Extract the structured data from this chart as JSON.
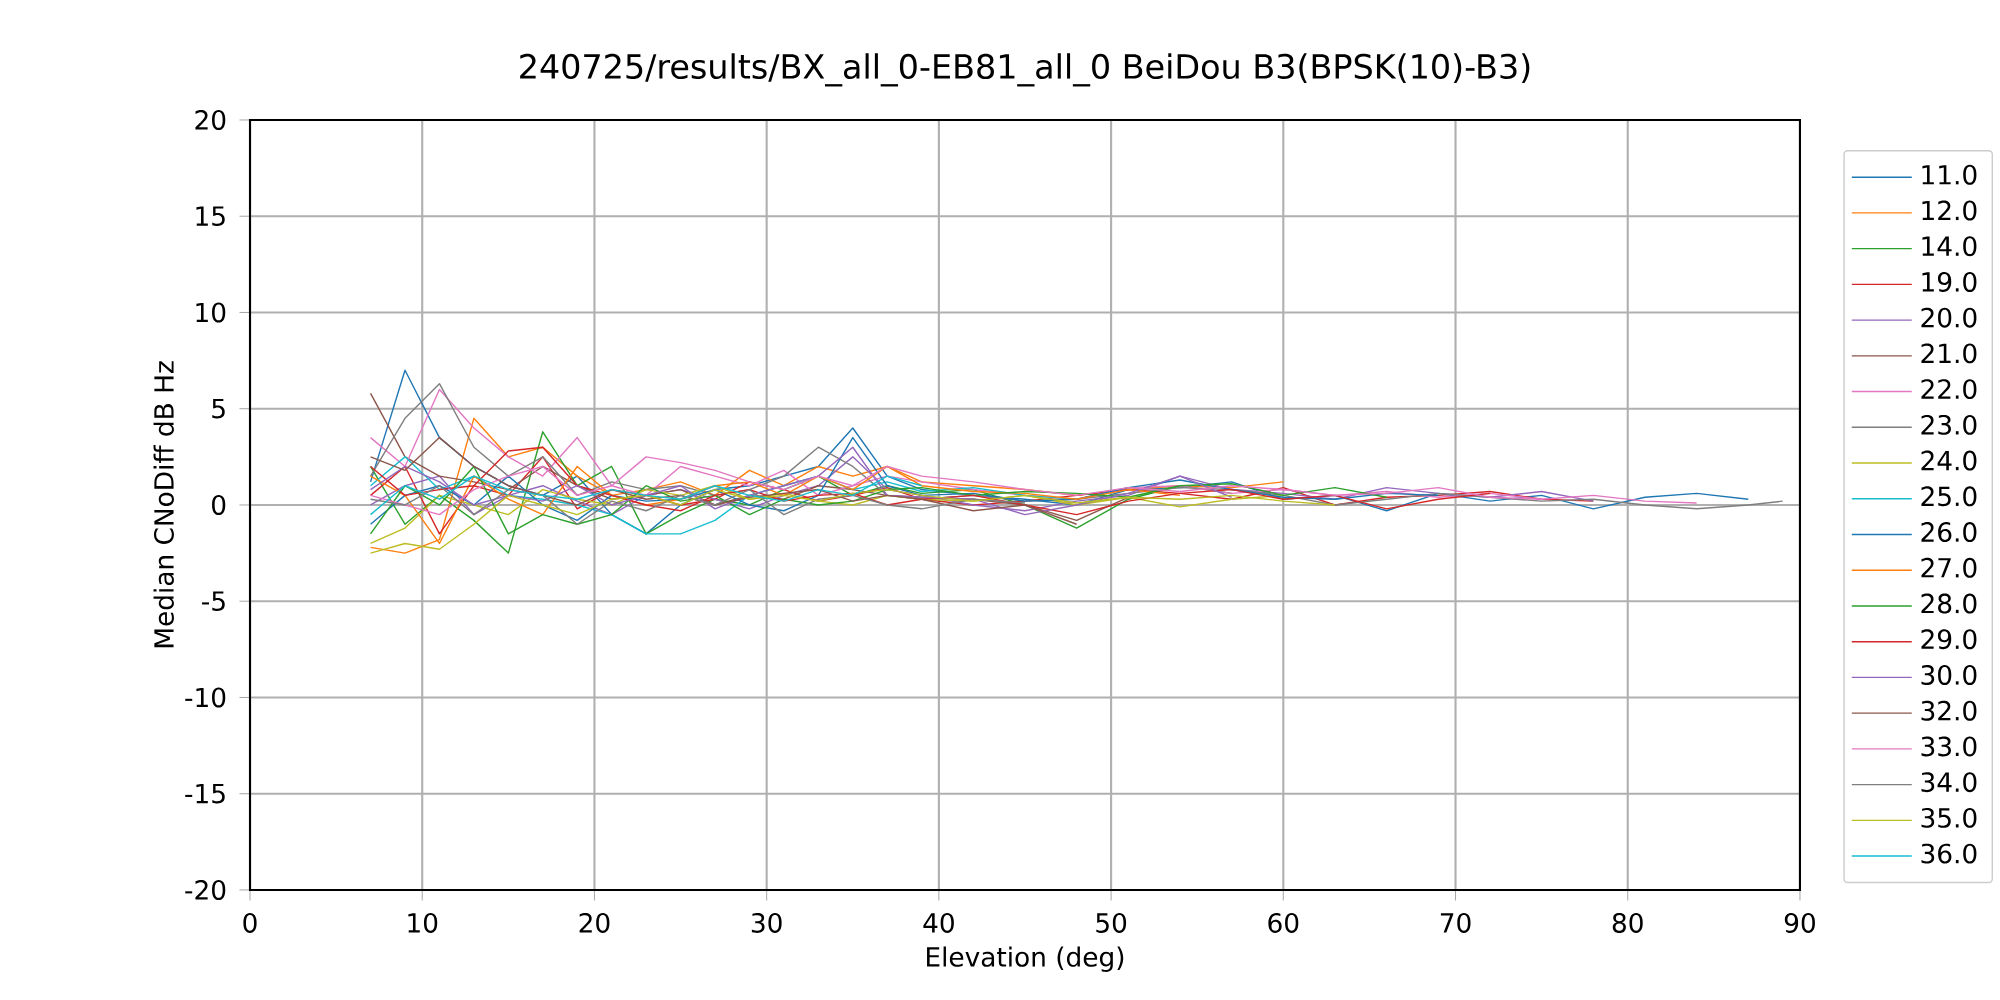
{
  "chart_data": {
    "type": "line",
    "title": "240725/results/BX_all_0-EB81_all_0 BeiDou B3(BPSK(10)-B3)",
    "xlabel": "Elevation (deg)",
    "ylabel": "Median CNoDiff dB Hz",
    "xlim": [
      0,
      90
    ],
    "ylim": [
      -20,
      20
    ],
    "xticks": [
      0,
      10,
      20,
      30,
      40,
      50,
      60,
      70,
      80,
      90
    ],
    "yticks": [
      -20,
      -15,
      -10,
      -5,
      0,
      5,
      10,
      15,
      20
    ],
    "grid": true,
    "legend": "right",
    "line_style": "solid",
    "series": [
      {
        "name": "11.0",
        "color": "#1f77b4",
        "x": [
          7,
          9,
          11,
          13,
          15,
          17,
          19,
          21,
          23,
          25,
          27,
          29,
          31,
          33,
          35,
          37,
          39,
          42,
          45,
          48,
          51,
          54,
          57,
          60,
          63,
          66,
          69,
          72,
          75,
          78,
          81,
          84,
          87
        ],
        "values": [
          1.2,
          7.0,
          3.5,
          2.0,
          1.0,
          0.5,
          1.5,
          -0.5,
          -1.5,
          0.0,
          0.8,
          1.0,
          1.5,
          2.0,
          4.0,
          1.5,
          0.8,
          0.5,
          0.3,
          0.0,
          0.8,
          0.9,
          1.2,
          0.3,
          0.5,
          -0.3,
          0.6,
          0.2,
          0.5,
          -0.2,
          0.4,
          0.6,
          0.3
        ]
      },
      {
        "name": "12.0",
        "color": "#ff7f0e",
        "x": [
          7,
          9,
          11,
          13,
          15,
          17,
          19,
          21,
          23,
          25,
          27,
          29,
          31,
          33,
          35,
          37,
          39,
          42,
          45,
          48,
          51,
          54,
          57,
          60
        ],
        "values": [
          -2.2,
          -2.5,
          -1.8,
          4.5,
          2.5,
          3.0,
          1.5,
          0.5,
          0.8,
          1.2,
          0.5,
          1.8,
          1.0,
          2.0,
          1.5,
          2.0,
          1.2,
          1.0,
          0.8,
          0.5,
          0.8,
          1.0,
          0.9,
          1.2
        ]
      },
      {
        "name": "14.0",
        "color": "#2ca02c",
        "x": [
          7,
          9,
          11,
          13,
          15,
          17,
          19,
          21,
          23,
          25,
          27,
          29,
          31,
          33,
          35,
          37,
          39,
          42,
          45,
          48,
          51,
          54,
          57
        ],
        "values": [
          2.0,
          -1.0,
          0.5,
          -0.8,
          -2.5,
          3.8,
          1.0,
          2.0,
          -1.5,
          -0.5,
          0.3,
          0.0,
          0.8,
          1.5,
          0.5,
          1.0,
          0.6,
          0.8,
          0.0,
          -1.2,
          0.3,
          1.0,
          0.6
        ]
      },
      {
        "name": "19.0",
        "color": "#d62728",
        "x": [
          7,
          9,
          11,
          13,
          15,
          17,
          19,
          21,
          23,
          25,
          27,
          29,
          31,
          33,
          35,
          37,
          39,
          42,
          45,
          48,
          51,
          54,
          57,
          60,
          63,
          66,
          69,
          72,
          75,
          78
        ],
        "values": [
          0.5,
          2.0,
          -1.5,
          1.0,
          0.5,
          2.5,
          -0.2,
          0.8,
          0.5,
          0.0,
          0.3,
          1.2,
          0.8,
          0.2,
          0.5,
          0.9,
          0.3,
          0.0,
          0.2,
          0.5,
          0.8,
          0.6,
          0.3,
          0.9,
          0.0,
          0.4,
          0.5,
          0.7,
          0.3,
          0.2
        ]
      },
      {
        "name": "20.0",
        "color": "#9467bd",
        "x": [
          7,
          9,
          11,
          13,
          15,
          17,
          19,
          21,
          23,
          25,
          27,
          29,
          31,
          33,
          35,
          37,
          39,
          42,
          45,
          48,
          51,
          54,
          57,
          60,
          63,
          66,
          69,
          72,
          75,
          78
        ],
        "values": [
          0.0,
          1.0,
          1.5,
          -0.5,
          0.5,
          1.0,
          0.2,
          -0.5,
          0.5,
          0.8,
          0.3,
          -0.2,
          0.5,
          1.0,
          2.5,
          0.8,
          0.5,
          0.0,
          -0.3,
          0.2,
          0.5,
          1.5,
          0.8,
          0.6,
          0.3,
          0.9,
          0.6,
          0.4,
          0.7,
          0.2
        ]
      },
      {
        "name": "21.0",
        "color": "#8c564b",
        "x": [
          7,
          9,
          11,
          13,
          15,
          17,
          19,
          21,
          23,
          25,
          27,
          29,
          31,
          33,
          35,
          37,
          39,
          42,
          45,
          48,
          51
        ],
        "values": [
          5.8,
          2.5,
          1.5,
          1.2,
          0.8,
          2.0,
          1.0,
          0.3,
          0.5,
          0.8,
          0.0,
          0.5,
          0.3,
          1.0,
          0.8,
          0.5,
          0.4,
          0.3,
          0.0,
          -0.8,
          0.4
        ]
      },
      {
        "name": "22.0",
        "color": "#e377c2",
        "x": [
          7,
          9,
          11,
          13,
          15,
          17,
          19,
          21,
          23,
          25,
          27,
          29,
          31,
          33,
          35,
          37,
          39,
          42,
          45,
          48,
          51,
          54,
          57,
          60,
          63,
          66,
          69,
          72,
          75,
          78,
          81,
          84
        ],
        "values": [
          3.5,
          2.0,
          6.0,
          4.0,
          2.5,
          1.5,
          3.5,
          1.0,
          0.5,
          2.0,
          1.5,
          1.0,
          1.8,
          0.5,
          1.0,
          1.5,
          1.2,
          0.8,
          0.5,
          0.3,
          0.9,
          1.0,
          0.6,
          0.8,
          0.5,
          0.7,
          0.4,
          0.6,
          0.3,
          0.5,
          0.2,
          0.1
        ]
      },
      {
        "name": "23.0",
        "color": "#7f7f7f",
        "x": [
          7,
          9,
          11,
          13,
          15,
          17,
          19,
          21,
          23,
          25,
          27,
          29,
          31,
          33,
          35,
          37,
          39,
          42,
          45,
          48,
          51,
          54,
          57,
          60,
          63,
          66,
          69,
          72,
          75,
          78,
          81,
          84,
          87,
          89
        ],
        "values": [
          1.5,
          4.5,
          6.3,
          3.0,
          1.5,
          2.5,
          0.5,
          1.2,
          0.8,
          1.0,
          0.5,
          0.8,
          1.5,
          3.0,
          2.0,
          0.5,
          0.3,
          0.5,
          0.2,
          0.3,
          0.6,
          0.9,
          0.8,
          0.5,
          0.0,
          0.3,
          0.6,
          0.4,
          0.2,
          0.3,
          0.0,
          -0.2,
          0.0,
          0.2
        ]
      },
      {
        "name": "24.0",
        "color": "#bcbd22",
        "x": [
          7,
          9,
          11,
          13,
          15,
          17,
          19,
          21,
          23,
          25,
          27,
          29,
          31,
          33,
          35,
          37,
          39,
          42,
          45,
          48,
          51,
          54,
          57,
          60
        ],
        "values": [
          -2.0,
          -1.2,
          0.5,
          0.0,
          -0.5,
          0.8,
          0.3,
          0.0,
          0.8,
          0.5,
          1.0,
          0.3,
          0.6,
          0.2,
          0.0,
          0.5,
          0.3,
          0.2,
          0.5,
          0.0,
          0.4,
          -0.1,
          0.3,
          0.5
        ]
      },
      {
        "name": "25.0",
        "color": "#17becf",
        "x": [
          7,
          9,
          11,
          13,
          15,
          17,
          19,
          21,
          23,
          25,
          27,
          29,
          31,
          33,
          35,
          37,
          39,
          42,
          45,
          48
        ],
        "values": [
          1.0,
          2.5,
          0.8,
          1.5,
          0.5,
          0.3,
          0.0,
          -0.5,
          -1.5,
          -1.5,
          -0.8,
          0.5,
          1.0,
          1.5,
          0.8,
          1.2,
          0.7,
          0.9,
          0.5,
          0.3
        ]
      },
      {
        "name": "26.0",
        "color": "#1f77b4",
        "x": [
          7,
          9,
          11,
          13,
          15,
          17,
          19,
          21,
          23,
          25,
          27,
          29,
          31,
          33,
          35,
          37,
          39,
          42,
          45,
          48,
          51,
          54,
          57,
          60,
          63,
          66,
          69
        ],
        "values": [
          -1.0,
          0.5,
          1.0,
          0.0,
          1.5,
          0.0,
          -0.8,
          0.5,
          0.2,
          0.3,
          0.8,
          0.0,
          -0.3,
          0.5,
          3.5,
          1.0,
          0.5,
          0.6,
          0.2,
          0.3,
          0.9,
          1.3,
          0.8,
          0.4,
          0.3,
          0.6,
          0.5
        ]
      },
      {
        "name": "27.0",
        "color": "#ff7f0e",
        "x": [
          7,
          9,
          11,
          13,
          15,
          17,
          19,
          21,
          23,
          25,
          27,
          29,
          31,
          33,
          35,
          37,
          39,
          42,
          45,
          48,
          51,
          54
        ],
        "values": [
          1.5,
          0.5,
          -2.0,
          1.5,
          0.3,
          -0.5,
          2.0,
          0.5,
          0.0,
          0.3,
          1.0,
          1.2,
          0.5,
          1.5,
          0.8,
          2.0,
          1.0,
          0.7,
          0.6,
          0.3,
          0.8,
          0.5
        ]
      },
      {
        "name": "28.0",
        "color": "#2ca02c",
        "x": [
          7,
          9,
          11,
          13,
          15,
          17,
          19,
          21,
          23,
          25,
          27,
          29,
          31,
          33,
          35,
          37,
          39,
          42,
          45,
          48,
          51,
          54,
          57,
          60,
          63,
          66
        ],
        "values": [
          -1.5,
          1.0,
          0.0,
          2.0,
          -1.5,
          -0.5,
          -1.0,
          -0.5,
          1.0,
          0.2,
          0.5,
          -0.5,
          0.3,
          0.0,
          0.2,
          0.8,
          0.9,
          0.5,
          0.7,
          0.6,
          0.4,
          1.0,
          1.1,
          0.5,
          0.9,
          0.4
        ]
      },
      {
        "name": "29.0",
        "color": "#d62728",
        "x": [
          7,
          9,
          11,
          13,
          15,
          17,
          19,
          21,
          23,
          25,
          27,
          29,
          31,
          33,
          35,
          37,
          39,
          42,
          45,
          48,
          51,
          54,
          57,
          60,
          63,
          66,
          69,
          72
        ],
        "values": [
          2.0,
          0.5,
          0.8,
          1.0,
          2.8,
          3.0,
          1.0,
          0.5,
          0.0,
          -0.3,
          0.5,
          0.8,
          0.2,
          0.5,
          0.6,
          0.0,
          0.3,
          0.5,
          0.0,
          -0.5,
          0.2,
          0.6,
          0.8,
          0.3,
          0.5,
          -0.2,
          0.3,
          0.6
        ]
      },
      {
        "name": "30.0",
        "color": "#9467bd",
        "x": [
          7,
          9,
          11,
          13,
          15,
          17,
          19,
          21,
          23,
          25,
          27,
          29,
          31,
          33,
          35,
          37,
          39,
          42,
          45,
          48,
          51,
          54,
          57
        ],
        "values": [
          0.8,
          2.0,
          1.2,
          0.0,
          0.5,
          0.2,
          1.0,
          0.0,
          0.5,
          1.0,
          -0.2,
          0.5,
          1.0,
          1.5,
          3.0,
          0.5,
          0.4,
          0.3,
          -0.5,
          0.0,
          0.6,
          1.5,
          0.4
        ]
      },
      {
        "name": "32.0",
        "color": "#8c564b",
        "x": [
          7,
          9,
          11,
          13,
          15,
          17,
          19,
          21,
          23,
          25,
          27,
          29,
          31,
          33,
          35,
          37,
          39,
          42,
          45,
          48
        ],
        "values": [
          2.5,
          1.8,
          3.5,
          2.0,
          1.0,
          0.5,
          0.0,
          0.8,
          0.3,
          0.5,
          0.0,
          0.4,
          0.6,
          0.8,
          0.2,
          0.5,
          0.3,
          -0.3,
          0.0,
          -1.0
        ]
      },
      {
        "name": "33.0",
        "color": "#e377c2",
        "x": [
          7,
          9,
          11,
          13,
          15,
          17,
          19,
          21,
          23,
          25,
          27,
          29,
          31,
          33,
          35,
          37,
          39,
          42,
          45,
          48,
          51,
          54,
          57,
          60,
          63,
          66,
          69,
          72,
          75
        ],
        "values": [
          0.5,
          0.0,
          -0.5,
          0.8,
          1.5,
          2.0,
          0.5,
          1.0,
          2.5,
          2.2,
          1.8,
          1.2,
          0.8,
          1.5,
          1.0,
          2.0,
          1.5,
          1.2,
          0.8,
          0.5,
          0.9,
          0.7,
          1.0,
          0.8,
          0.5,
          0.6,
          0.9,
          0.4,
          0.3
        ]
      },
      {
        "name": "34.0",
        "color": "#7f7f7f",
        "x": [
          7,
          9,
          11,
          13,
          15,
          17,
          19,
          21,
          23,
          25,
          27,
          29,
          31,
          33,
          35,
          37,
          39,
          42,
          45
        ],
        "values": [
          0.3,
          0.0,
          1.0,
          -0.5,
          0.8,
          0.5,
          -1.0,
          0.2,
          -0.3,
          0.5,
          0.0,
          0.8,
          -0.5,
          0.3,
          0.5,
          0.0,
          -0.2,
          0.3,
          0.1
        ]
      },
      {
        "name": "35.0",
        "color": "#bcbd22",
        "x": [
          7,
          9,
          11,
          13,
          15,
          17,
          19,
          21,
          23,
          25,
          27,
          29,
          31,
          33,
          35,
          37,
          39,
          42,
          45,
          48,
          51,
          54,
          57,
          60,
          63
        ],
        "values": [
          -2.5,
          -2.0,
          -2.3,
          -1.0,
          0.5,
          0.0,
          -0.5,
          0.3,
          0.5,
          0.0,
          0.8,
          0.3,
          0.5,
          0.2,
          0.6,
          0.8,
          0.5,
          0.2,
          0.5,
          0.1,
          0.4,
          0.3,
          0.5,
          0.2,
          0.0
        ]
      },
      {
        "name": "36.0",
        "color": "#17becf",
        "x": [
          7,
          9,
          11,
          13,
          15,
          17,
          19,
          21,
          23,
          25,
          27,
          29,
          31,
          33,
          35,
          37,
          39
        ],
        "values": [
          -0.5,
          1.0,
          0.3,
          1.5,
          0.8,
          0.5,
          0.3,
          0.8,
          0.5,
          0.3,
          1.0,
          0.5,
          0.2,
          0.8,
          0.5,
          1.5,
          1.0
        ]
      }
    ]
  }
}
